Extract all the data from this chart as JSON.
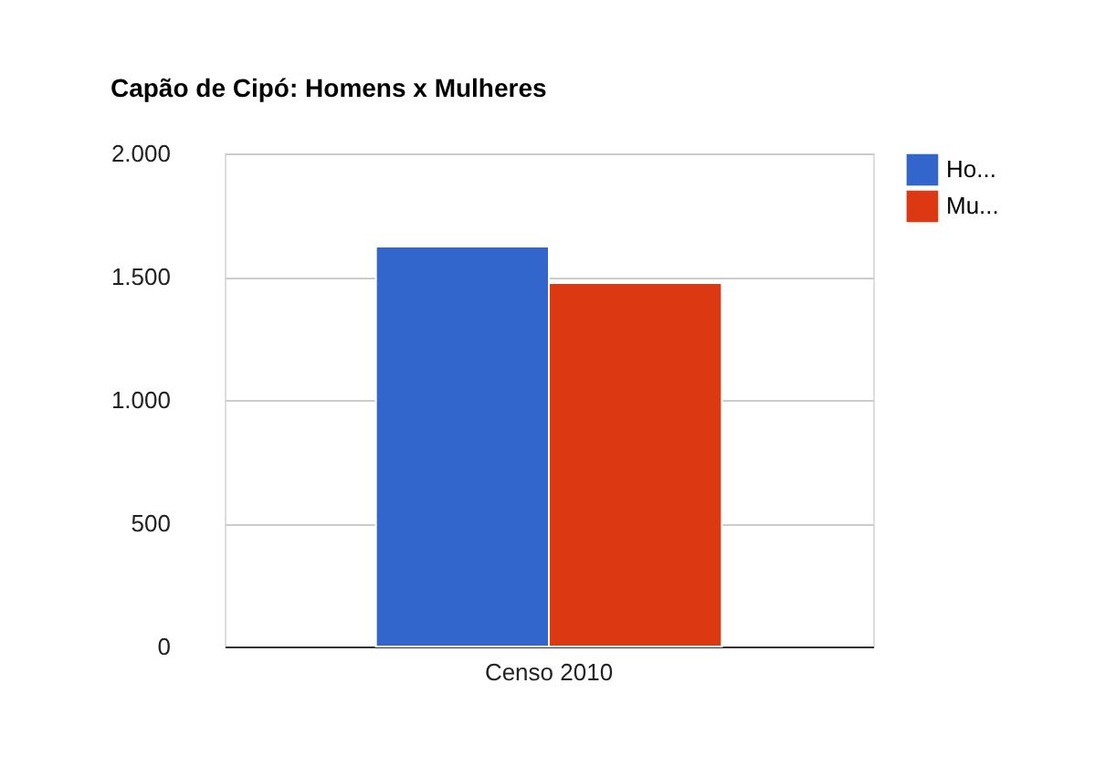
{
  "chart_data": {
    "type": "bar",
    "title": "Capão de Cipó: Homens x Mulheres",
    "categories": [
      "Censo 2010"
    ],
    "series": [
      {
        "name": "Ho...",
        "color": "#3366cc",
        "values": [
          1622
        ]
      },
      {
        "name": "Mu...",
        "color": "#dc3912",
        "values": [
          1474
        ]
      }
    ],
    "ylim": [
      0,
      2000
    ],
    "yticks": [
      0,
      500,
      {
        "value": 1000,
        "label": "1.000"
      },
      {
        "value": 1500,
        "label": "1.500"
      },
      {
        "value": 2000,
        "label": "2.000"
      }
    ],
    "grid": "y",
    "legend": "top right"
  }
}
